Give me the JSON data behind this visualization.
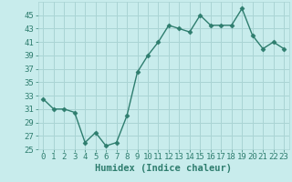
{
  "x": [
    0,
    1,
    2,
    3,
    4,
    5,
    6,
    7,
    8,
    9,
    10,
    11,
    12,
    13,
    14,
    15,
    16,
    17,
    18,
    19,
    20,
    21,
    22,
    23
  ],
  "y": [
    32.5,
    31.0,
    31.0,
    30.5,
    26.0,
    27.5,
    25.5,
    26.0,
    30.0,
    36.5,
    39.0,
    41.0,
    43.5,
    43.0,
    42.5,
    45.0,
    43.5,
    43.5,
    43.5,
    46.0,
    42.0,
    40.0,
    41.0,
    40.0
  ],
  "line_color": "#2e7d6e",
  "marker": "D",
  "marker_size": 2.5,
  "bg_color": "#c8ecec",
  "grid_color": "#aad4d4",
  "xlabel": "Humidex (Indice chaleur)",
  "xlim": [
    -0.5,
    23.5
  ],
  "ylim": [
    25,
    47
  ],
  "xticks": [
    0,
    1,
    2,
    3,
    4,
    5,
    6,
    7,
    8,
    9,
    10,
    11,
    12,
    13,
    14,
    15,
    16,
    17,
    18,
    19,
    20,
    21,
    22,
    23
  ],
  "yticks": [
    25,
    27,
    29,
    31,
    33,
    35,
    37,
    39,
    41,
    43,
    45
  ],
  "tick_label_fontsize": 6.5,
  "xlabel_fontsize": 7.5,
  "line_color_dark": "#1e6b5e",
  "tick_color": "#2e7d6e"
}
